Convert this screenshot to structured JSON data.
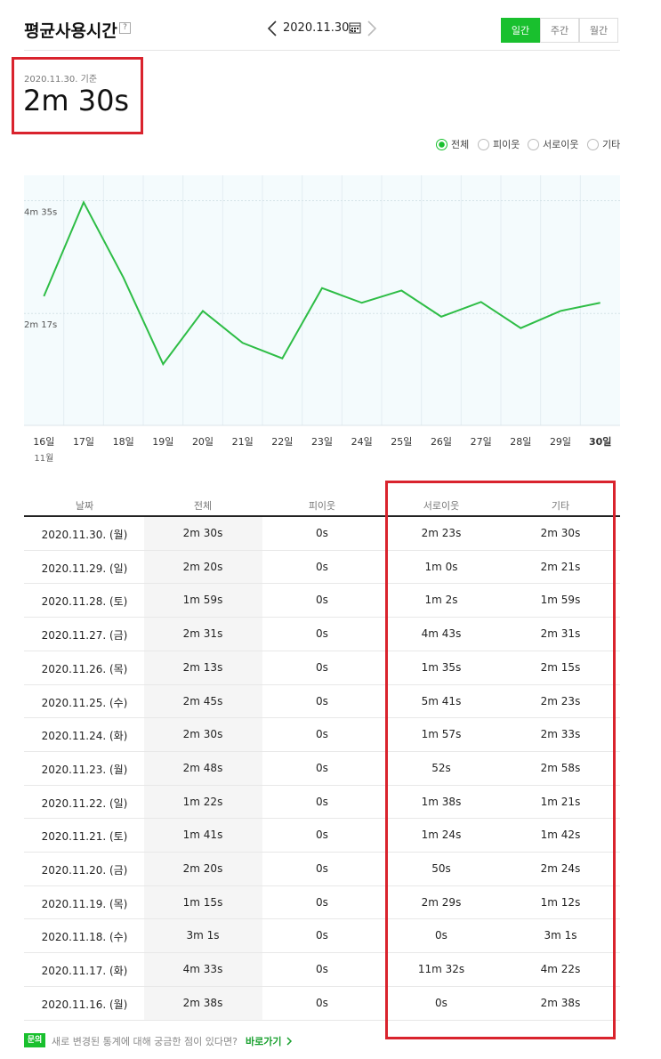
{
  "header": {
    "title": "평균사용시간",
    "help": "?",
    "date": "2020.11.30.",
    "tabs": [
      "일간",
      "주간",
      "월간"
    ]
  },
  "summary": {
    "caption": "2020.11.30. 기준",
    "value": "2m 30s"
  },
  "filter_options": [
    "피이웃",
    "서로이웃",
    "기타"
  ],
  "chart_data": {
    "type": "line",
    "categories": [
      "16일",
      "17일",
      "18일",
      "19일",
      "20일",
      "21일",
      "22일",
      "23일",
      "24일",
      "25일",
      "26일",
      "27일",
      "28일",
      "29일",
      "30일"
    ],
    "month_label": "11월",
    "series": [
      {
        "name": "전체",
        "color": "#2ebd46",
        "values": [
          158,
          273,
          181,
          75,
          140,
          101,
          82,
          168,
          150,
          165,
          133,
          151,
          119,
          140,
          150
        ]
      }
    ],
    "ylim": [
      0,
      306
    ],
    "yticks": [
      {
        "value": 137,
        "label": "2m 17s"
      },
      {
        "value": 275,
        "label": "4m 35s"
      }
    ],
    "grid": true
  },
  "table": {
    "headers": [
      "날짜",
      "전체",
      "피이웃",
      "서로이웃",
      "기타"
    ],
    "rows": [
      [
        "2020.11.30. (월)",
        "2m 30s",
        "0s",
        "2m 23s",
        "2m 30s"
      ],
      [
        "2020.11.29. (일)",
        "2m 20s",
        "0s",
        "1m 0s",
        "2m 21s"
      ],
      [
        "2020.11.28. (토)",
        "1m 59s",
        "0s",
        "1m 2s",
        "1m 59s"
      ],
      [
        "2020.11.27. (금)",
        "2m 31s",
        "0s",
        "4m 43s",
        "2m 31s"
      ],
      [
        "2020.11.26. (목)",
        "2m 13s",
        "0s",
        "1m 35s",
        "2m 15s"
      ],
      [
        "2020.11.25. (수)",
        "2m 45s",
        "0s",
        "5m 41s",
        "2m 23s"
      ],
      [
        "2020.11.24. (화)",
        "2m 30s",
        "0s",
        "1m 57s",
        "2m 33s"
      ],
      [
        "2020.11.23. (월)",
        "2m 48s",
        "0s",
        "52s",
        "2m 58s"
      ],
      [
        "2020.11.22. (일)",
        "1m 22s",
        "0s",
        "1m 38s",
        "1m 21s"
      ],
      [
        "2020.11.21. (토)",
        "1m 41s",
        "0s",
        "1m 24s",
        "1m 42s"
      ],
      [
        "2020.11.20. (금)",
        "2m 20s",
        "0s",
        "50s",
        "2m 24s"
      ],
      [
        "2020.11.19. (목)",
        "1m 15s",
        "0s",
        "2m 29s",
        "1m 12s"
      ],
      [
        "2020.11.18. (수)",
        "3m 1s",
        "0s",
        "0s",
        "3m 1s"
      ],
      [
        "2020.11.17. (화)",
        "4m 33s",
        "0s",
        "11m 32s",
        "4m 22s"
      ],
      [
        "2020.11.16. (월)",
        "2m 38s",
        "0s",
        "0s",
        "2m 38s"
      ]
    ]
  },
  "footer": {
    "badge": "문의",
    "text": "새로 변경된 통계에 대해 궁금한 점이 있다면?",
    "link": "바로가기"
  }
}
